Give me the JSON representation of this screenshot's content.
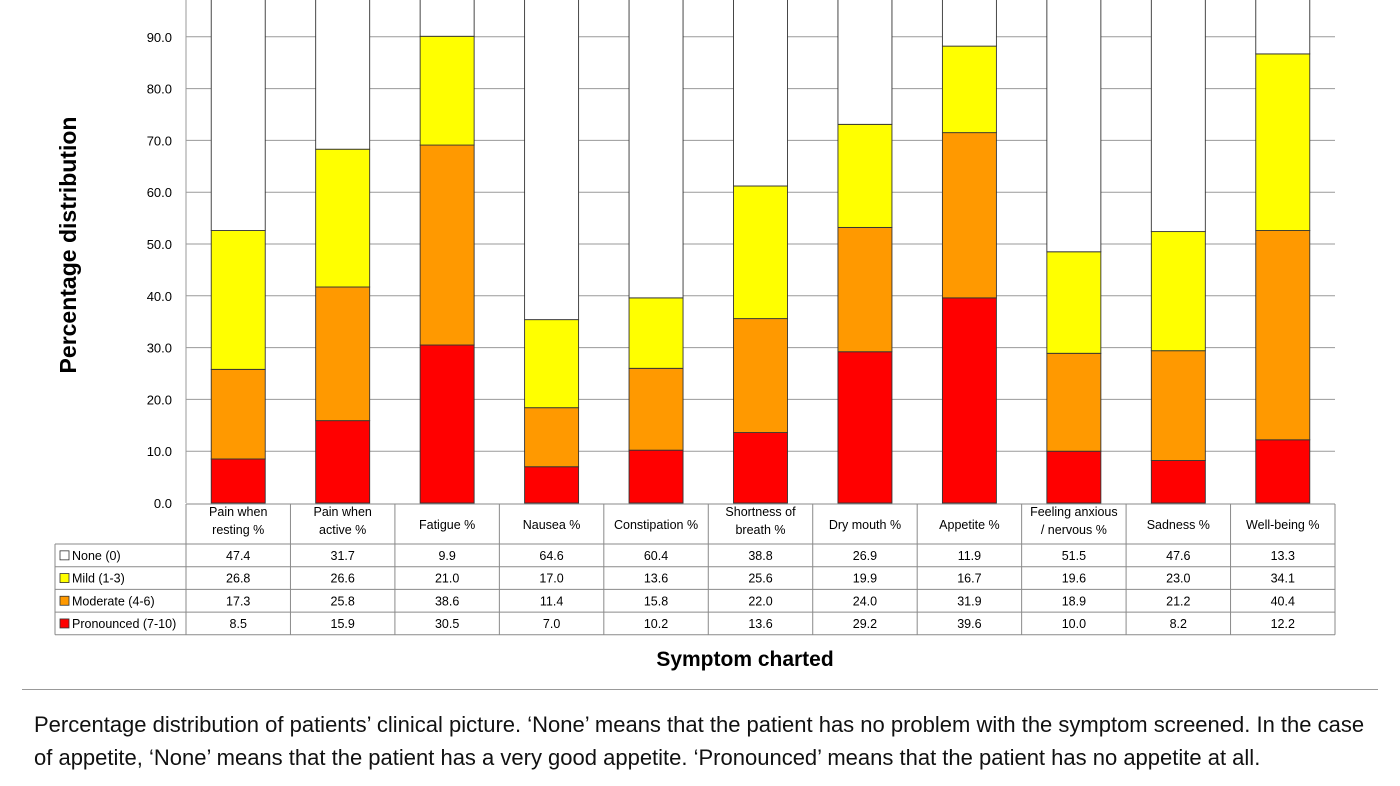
{
  "chart_data": {
    "type": "bar",
    "stacked": true,
    "ylabel": "Percentage distribution",
    "xlabel": "Symptom charted",
    "ylim": [
      0,
      100
    ],
    "yticks": [
      0,
      10,
      20,
      30,
      40,
      50,
      60,
      70,
      80,
      90
    ],
    "grid": true,
    "categories": [
      [
        "Pain when",
        "resting %"
      ],
      [
        "Pain when",
        "active %"
      ],
      [
        "Fatigue %"
      ],
      [
        "Nausea %"
      ],
      [
        "Constipation %"
      ],
      [
        "Shortness of",
        "breath %"
      ],
      [
        "Dry mouth %"
      ],
      [
        "Appetite %"
      ],
      [
        "Feeling anxious",
        "/ nervous %"
      ],
      [
        "Sadness %"
      ],
      [
        "Well-being %"
      ]
    ],
    "series": [
      {
        "name": "None (0)",
        "color": "#ffffff",
        "values": [
          47.4,
          31.7,
          9.9,
          64.6,
          60.4,
          38.8,
          26.9,
          11.9,
          51.5,
          47.6,
          13.3
        ]
      },
      {
        "name": "Mild (1-3)",
        "color": "#ffff00",
        "values": [
          26.8,
          26.6,
          21.0,
          17.0,
          13.6,
          25.6,
          19.9,
          16.7,
          19.6,
          23.0,
          34.1
        ]
      },
      {
        "name": "Moderate (4-6)",
        "color": "#ff9900",
        "values": [
          17.3,
          25.8,
          38.6,
          11.4,
          15.8,
          22.0,
          24.0,
          31.9,
          18.9,
          21.2,
          40.4
        ]
      },
      {
        "name": "Pronounced (7-10)",
        "color": "#ff0000",
        "values": [
          8.5,
          15.9,
          30.5,
          7.0,
          10.2,
          13.6,
          29.2,
          39.6,
          10.0,
          8.2,
          12.2
        ]
      }
    ]
  },
  "caption": "Percentage distribution of patients’ clinical picture. ‘None’ means that the patient has no problem with the symptom screened. In the case of appetite, ‘None’ means that the patient has a very good appetite. ‘Pronounced’ means that the patient has no appetite at all."
}
